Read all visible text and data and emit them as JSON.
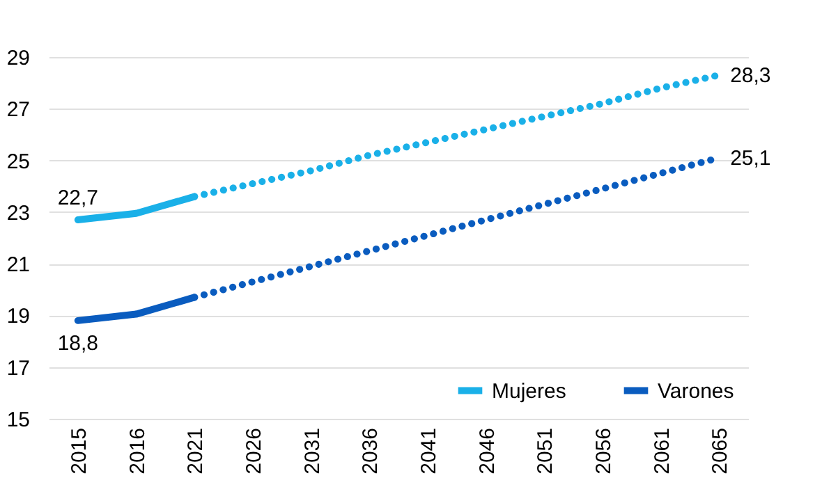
{
  "chart_data": {
    "type": "line",
    "categories": [
      "2015",
      "2016",
      "2021",
      "2026",
      "2031",
      "2036",
      "2041",
      "2046",
      "2051",
      "2056",
      "2061",
      "2065"
    ],
    "series": [
      {
        "name": "Mujeres",
        "color": "#1ab0e8",
        "line_style": "solid",
        "values": [
          22.7,
          22.95,
          23.6,
          null,
          null,
          null,
          null,
          null,
          null,
          null,
          null,
          null
        ],
        "value_labels": [
          "22,7",
          null,
          null,
          null,
          null,
          null,
          null,
          null,
          null,
          null,
          null,
          null
        ]
      },
      {
        "name": "Varones",
        "color": "#0a5cbf",
        "line_style": "solid",
        "values": [
          18.8,
          19.05,
          19.7,
          null,
          null,
          null,
          null,
          null,
          null,
          null,
          null,
          null
        ],
        "value_labels": [
          "18,8",
          null,
          null,
          null,
          null,
          null,
          null,
          null,
          null,
          null,
          null,
          null
        ]
      },
      {
        "color": "#1ab0e8",
        "line_style": "dotted",
        "values": [
          null,
          null,
          23.6,
          24.1,
          24.6,
          25.2,
          25.7,
          26.2,
          26.7,
          27.2,
          27.8,
          28.3
        ],
        "value_labels": [
          null,
          null,
          null,
          null,
          null,
          null,
          null,
          null,
          null,
          null,
          null,
          "28,3"
        ]
      },
      {
        "color": "#0a5cbf",
        "line_style": "dotted",
        "values": [
          null,
          null,
          19.7,
          20.3,
          20.9,
          21.5,
          22.1,
          22.7,
          23.3,
          23.9,
          24.5,
          25.1
        ],
        "value_labels": [
          null,
          null,
          null,
          null,
          null,
          null,
          null,
          null,
          null,
          null,
          null,
          "25,1"
        ]
      }
    ],
    "ylim": [
      15,
      29
    ],
    "yticks": [
      15,
      17,
      19,
      21,
      23,
      25,
      27,
      29
    ],
    "grid": "y",
    "legend": "bottom right"
  }
}
